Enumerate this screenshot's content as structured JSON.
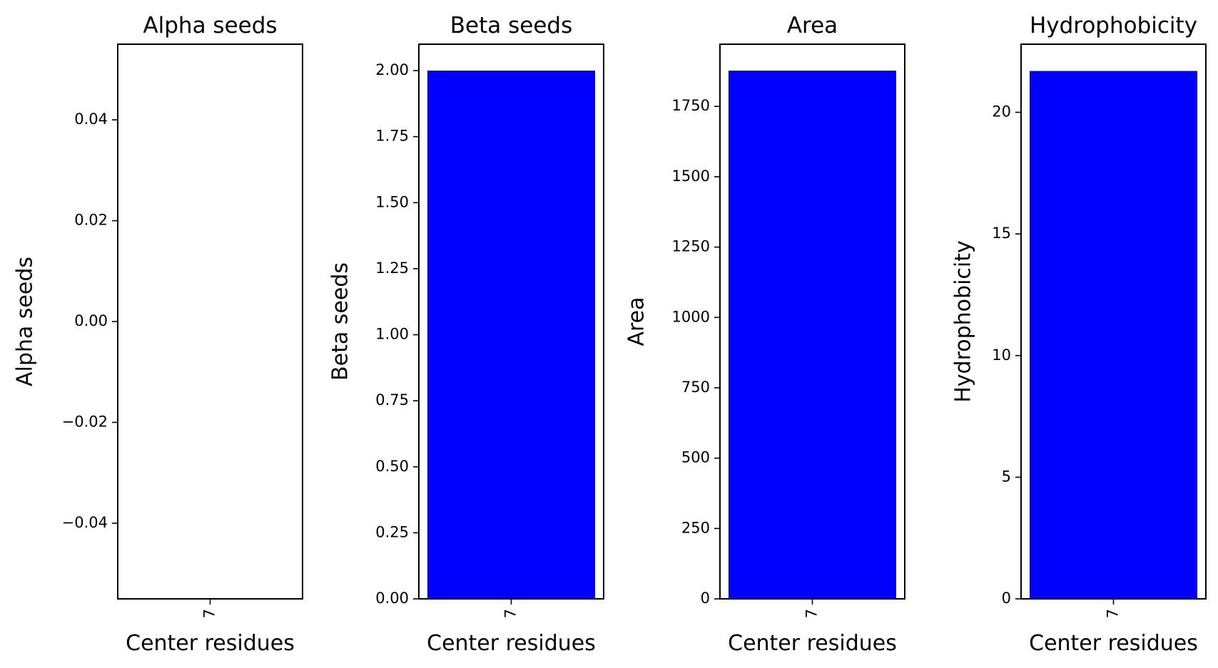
{
  "chart_data": [
    {
      "type": "bar",
      "title": "Alpha seeds",
      "xlabel": "Center residues",
      "ylabel": "Alpha seeds",
      "categories": [
        "7"
      ],
      "values": [
        0
      ],
      "ylim": [
        -0.055,
        0.055
      ],
      "yticks": [
        0.04,
        0.02,
        0.0,
        -0.02,
        -0.04
      ],
      "ytick_labels": [
        "0.04",
        "0.02",
        "0.00",
        "−0.02",
        "−0.04"
      ],
      "bar_color": "#0000ff",
      "grid": false
    },
    {
      "type": "bar",
      "title": "Beta seeds",
      "xlabel": "Center residues",
      "ylabel": "Beta seeds",
      "categories": [
        "7"
      ],
      "values": [
        2.0
      ],
      "ylim": [
        0,
        2.1
      ],
      "yticks": [
        0,
        0.25,
        0.5,
        0.75,
        1.0,
        1.25,
        1.5,
        1.75,
        2.0
      ],
      "ytick_labels": [
        "0.00",
        "0.25",
        "0.50",
        "0.75",
        "1.00",
        "1.25",
        "1.50",
        "1.75",
        "2.00"
      ],
      "bar_color": "#0000ff",
      "grid": false
    },
    {
      "type": "bar",
      "title": "Area",
      "xlabel": "Center residues",
      "ylabel": "Area",
      "categories": [
        "7"
      ],
      "values": [
        1877
      ],
      "ylim": [
        0,
        1971
      ],
      "yticks": [
        0,
        250,
        500,
        750,
        1000,
        1250,
        1500,
        1750
      ],
      "ytick_labels": [
        "0",
        "250",
        "500",
        "750",
        "1000",
        "1250",
        "1500",
        "1750"
      ],
      "bar_color": "#0000ff",
      "grid": false
    },
    {
      "type": "bar",
      "title": "Hydrophobicity",
      "xlabel": "Center residues",
      "ylabel": "Hydrophobicity",
      "categories": [
        "7"
      ],
      "values": [
        21.7
      ],
      "ylim": [
        0,
        22.8
      ],
      "yticks": [
        0,
        5,
        10,
        15,
        20
      ],
      "ytick_labels": [
        "0",
        "5",
        "10",
        "15",
        "20"
      ],
      "bar_color": "#0000ff",
      "grid": false
    }
  ]
}
